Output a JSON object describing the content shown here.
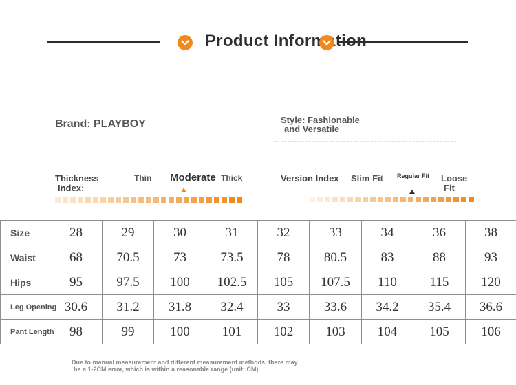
{
  "header": {
    "title": "Product Information"
  },
  "brand": "Brand: PLAYBOY",
  "style": {
    "line1": "Style: Fashionable",
    "line2": "and Versatile"
  },
  "thickness": {
    "label_line1": "Thickness",
    "label_line2": "Index:",
    "options": [
      "Thin",
      "Moderate",
      "Thick"
    ],
    "selected": "Moderate"
  },
  "version": {
    "label": "Version Index",
    "options": [
      "Slim Fit",
      "Regular Fit",
      "Loose Fit"
    ],
    "loose_line1": "Loose",
    "loose_line2": "Fit",
    "selected": "Regular Fit"
  },
  "colors": {
    "accent": "#f08a1c",
    "scale_light": "#fbe1c6",
    "scale_dark": "#f08a1c"
  },
  "size_table": {
    "rows": [
      {
        "label": "Size",
        "values": [
          "28",
          "29",
          "30",
          "31",
          "32",
          "33",
          "34",
          "36",
          "38"
        ]
      },
      {
        "label": "Waist",
        "values": [
          "68",
          "70.5",
          "73",
          "73.5",
          "78",
          "80.5",
          "83",
          "88",
          "93"
        ]
      },
      {
        "label": "Hips",
        "values": [
          "95",
          "97.5",
          "100",
          "102.5",
          "105",
          "107.5",
          "110",
          "115",
          "120"
        ]
      },
      {
        "label": "Leg Opening",
        "values": [
          "30.6",
          "31.2",
          "31.8",
          "32.4",
          "33",
          "33.6",
          "34.2",
          "35.4",
          "36.6"
        ]
      },
      {
        "label": "Pant Length",
        "values": [
          "98",
          "99",
          "100",
          "101",
          "102",
          "103",
          "104",
          "105",
          "106"
        ]
      }
    ]
  },
  "footnote": {
    "line1": "Due to manual measurement and different measurement methods, there may",
    "line2": "be a 1-2CM error, which is within a reasonable range (unit: CM)"
  }
}
